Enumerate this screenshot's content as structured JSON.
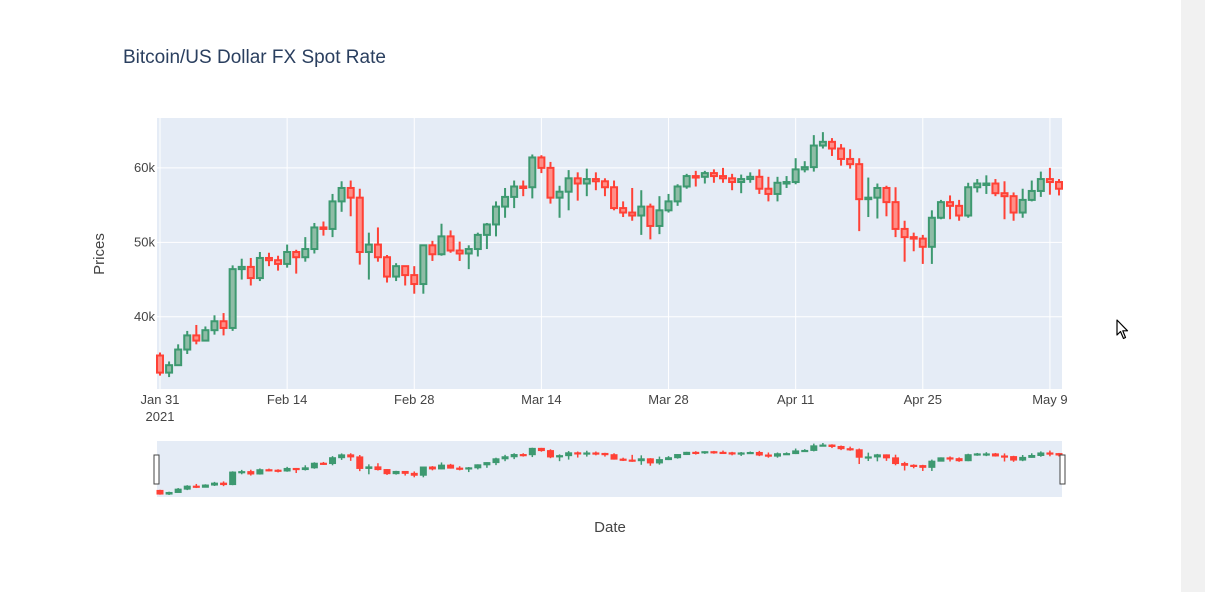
{
  "chart_data": {
    "type": "candlestick",
    "title": "Bitcoin/US Dollar FX Spot Rate",
    "xlabel": "Date",
    "ylabel": "Prices",
    "x_ticks": [
      {
        "date": "2021-01-31",
        "label": "Jan 31",
        "sublabel": "2021"
      },
      {
        "date": "2021-02-14",
        "label": "Feb 14"
      },
      {
        "date": "2021-02-28",
        "label": "Feb 28"
      },
      {
        "date": "2021-03-14",
        "label": "Mar 14"
      },
      {
        "date": "2021-03-28",
        "label": "Mar 28"
      },
      {
        "date": "2021-04-11",
        "label": "Apr 11"
      },
      {
        "date": "2021-04-25",
        "label": "Apr 25"
      },
      {
        "date": "2021-05-09",
        "label": "May 9"
      }
    ],
    "y_ticks": [
      {
        "value": 40000,
        "label": "40k"
      },
      {
        "value": 50000,
        "label": "50k"
      },
      {
        "value": 60000,
        "label": "60k"
      }
    ],
    "xlim": [
      "2021-01-31",
      "2021-05-10"
    ],
    "ylim": [
      30300,
      66700
    ],
    "grid": true,
    "rangeslider": true,
    "colors": {
      "increasing": "#3d9970",
      "decreasing": "#ff4136",
      "plot_bg": "#e5ecf6",
      "grid": "#ffffff"
    },
    "dates": [
      "2021-01-31",
      "2021-02-01",
      "2021-02-02",
      "2021-02-03",
      "2021-02-04",
      "2021-02-05",
      "2021-02-06",
      "2021-02-07",
      "2021-02-08",
      "2021-02-09",
      "2021-02-10",
      "2021-02-11",
      "2021-02-12",
      "2021-02-13",
      "2021-02-14",
      "2021-02-15",
      "2021-02-16",
      "2021-02-17",
      "2021-02-18",
      "2021-02-19",
      "2021-02-20",
      "2021-02-21",
      "2021-02-22",
      "2021-02-23",
      "2021-02-24",
      "2021-02-25",
      "2021-02-26",
      "2021-02-27",
      "2021-02-28",
      "2021-03-01",
      "2021-03-02",
      "2021-03-03",
      "2021-03-04",
      "2021-03-05",
      "2021-03-06",
      "2021-03-07",
      "2021-03-08",
      "2021-03-09",
      "2021-03-10",
      "2021-03-11",
      "2021-03-12",
      "2021-03-13",
      "2021-03-14",
      "2021-03-15",
      "2021-03-16",
      "2021-03-17",
      "2021-03-18",
      "2021-03-19",
      "2021-03-20",
      "2021-03-21",
      "2021-03-22",
      "2021-03-23",
      "2021-03-24",
      "2021-03-25",
      "2021-03-26",
      "2021-03-27",
      "2021-03-28",
      "2021-03-29",
      "2021-03-30",
      "2021-03-31",
      "2021-04-01",
      "2021-04-02",
      "2021-04-03",
      "2021-04-04",
      "2021-04-05",
      "2021-04-06",
      "2021-04-07",
      "2021-04-08",
      "2021-04-09",
      "2021-04-10",
      "2021-04-11",
      "2021-04-12",
      "2021-04-13",
      "2021-04-14",
      "2021-04-15",
      "2021-04-16",
      "2021-04-17",
      "2021-04-18",
      "2021-04-19",
      "2021-04-20",
      "2021-04-21",
      "2021-04-22",
      "2021-04-23",
      "2021-04-24",
      "2021-04-25",
      "2021-04-26",
      "2021-04-27",
      "2021-04-28",
      "2021-04-29",
      "2021-04-30",
      "2021-05-01",
      "2021-05-02",
      "2021-05-03",
      "2021-05-04",
      "2021-05-05",
      "2021-05-06",
      "2021-05-07",
      "2021-05-08",
      "2021-05-09",
      "2021-05-10"
    ],
    "close": [
      32500,
      33500,
      35600,
      37500,
      36800,
      38200,
      39400,
      38500,
      46400,
      46700,
      45200,
      47900,
      47600,
      47100,
      48700,
      48000,
      49100,
      52000,
      51800,
      55500,
      57300,
      56000,
      48700,
      49700,
      48000,
      45400,
      46800,
      45600,
      44400,
      49600,
      48400,
      50800,
      48900,
      48500,
      49100,
      51000,
      52400,
      54800,
      56100,
      57500,
      57400,
      61400,
      60000,
      56000,
      56800,
      58600,
      57900,
      58500,
      58200,
      57400,
      54600,
      54000,
      53600,
      54800,
      52200,
      54300,
      55500,
      57500,
      58900,
      58800,
      59300,
      58900,
      58600,
      58100,
      58500,
      58800,
      57200,
      56500,
      58000,
      58100,
      59800,
      60100,
      63000,
      63500,
      62600,
      61200,
      60500,
      55800,
      56000,
      57300,
      55400,
      51800,
      50700,
      50500,
      49400,
      53300,
      55400,
      54900,
      53600,
      57400,
      57900,
      57900,
      56600,
      56200,
      54000,
      55700,
      56900,
      58500,
      58100,
      57200
    ],
    "open": [
      34800,
      32500,
      33500,
      35600,
      37500,
      36800,
      38200,
      39400,
      38500,
      46400,
      46700,
      45200,
      47900,
      47600,
      47100,
      48700,
      48000,
      49100,
      52000,
      51800,
      55500,
      57300,
      56000,
      48700,
      49700,
      48000,
      45400,
      46800,
      45600,
      44400,
      49600,
      48400,
      50800,
      48900,
      48500,
      49100,
      51000,
      52400,
      54800,
      56100,
      57500,
      57400,
      61400,
      60000,
      56000,
      56800,
      58600,
      57900,
      58500,
      58200,
      57400,
      54600,
      54000,
      53600,
      54800,
      52200,
      54300,
      55500,
      57500,
      58900,
      58800,
      59300,
      58900,
      58600,
      58100,
      58500,
      58800,
      57200,
      56500,
      58000,
      58100,
      59800,
      60100,
      63000,
      63500,
      62600,
      61200,
      60500,
      55800,
      56000,
      57300,
      55400,
      51800,
      50700,
      50500,
      49400,
      53300,
      55400,
      54900,
      53600,
      57400,
      57900,
      57900,
      56600,
      56200,
      54000,
      55700,
      56900,
      58500,
      58100
    ],
    "high": [
      35200,
      34000,
      36300,
      38100,
      38900,
      38700,
      40200,
      40500,
      46900,
      47800,
      47900,
      48700,
      48600,
      48200,
      49700,
      49000,
      50700,
      52600,
      52800,
      56500,
      58200,
      58300,
      57200,
      51300,
      52000,
      48300,
      47200,
      46700,
      46800,
      49700,
      50200,
      52500,
      51600,
      50100,
      49600,
      51300,
      52600,
      55500,
      57300,
      58300,
      58300,
      61800,
      61700,
      60800,
      57600,
      59700,
      59400,
      59900,
      59400,
      58600,
      58300,
      55500,
      57300,
      57000,
      55200,
      56200,
      56500,
      57800,
      59200,
      59600,
      59600,
      59800,
      60000,
      59200,
      59100,
      59400,
      59800,
      58800,
      58800,
      58900,
      61300,
      60900,
      64400,
      64800,
      64000,
      63200,
      62500,
      61300,
      58700,
      57900,
      57600,
      57400,
      52900,
      51300,
      51000,
      54300,
      55700,
      56300,
      55700,
      58000,
      58500,
      59000,
      58500,
      58200,
      56700,
      57200,
      58300,
      59500,
      60000,
      58500
    ],
    "low": [
      32100,
      31900,
      33500,
      35000,
      36300,
      36700,
      37600,
      37500,
      38100,
      45000,
      44200,
      44800,
      46800,
      46200,
      46600,
      45800,
      47400,
      48500,
      50900,
      50700,
      54100,
      53500,
      47000,
      45000,
      47400,
      44600,
      44800,
      44200,
      43100,
      43100,
      47500,
      48200,
      48600,
      47500,
      46400,
      48100,
      49100,
      50800,
      53300,
      54600,
      56200,
      55900,
      59300,
      55200,
      53300,
      54300,
      55600,
      56200,
      57000,
      56200,
      54300,
      53400,
      52900,
      51000,
      50400,
      51100,
      54000,
      54900,
      57200,
      57500,
      57900,
      58000,
      58000,
      57000,
      56600,
      58000,
      56500,
      55500,
      55500,
      57300,
      57800,
      59400,
      59500,
      62600,
      61600,
      60300,
      59900,
      51500,
      53400,
      53200,
      53500,
      50700,
      47400,
      48800,
      47100,
      47100,
      53100,
      53100,
      52900,
      53300,
      56700,
      56500,
      56200,
      53100,
      52900,
      53300,
      55500,
      56100,
      56400,
      56300
    ]
  }
}
